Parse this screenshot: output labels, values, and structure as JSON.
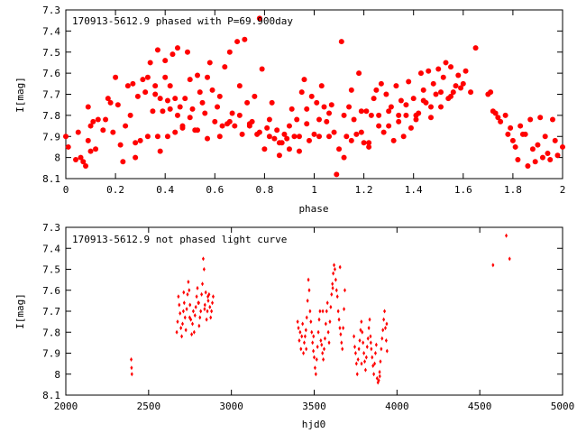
{
  "chart_data": [
    {
      "type": "scatter",
      "title": "170913-5612.9 phased with P=69.900day",
      "xlabel": "phase",
      "ylabel": "I[mag]",
      "xlim": [
        0,
        2
      ],
      "ylim": [
        8.1,
        7.3
      ],
      "y_inverted": true,
      "x_ticks": [
        "0",
        "0.2",
        "0.4",
        "0.6",
        "0.8",
        "1",
        "1.2",
        "1.4",
        "1.6",
        "1.8",
        "2"
      ],
      "y_ticks": [
        "7.3",
        "7.4",
        "7.5",
        "7.6",
        "7.7",
        "7.8",
        "7.9",
        "8",
        "8.1"
      ],
      "marker_color": "#ff0000",
      "marker": "filled-circle",
      "grid": false,
      "series": [
        {
          "x": [
            0.0,
            0.01,
            0.04,
            0.05,
            0.06,
            0.07,
            0.08,
            0.09,
            0.09,
            0.1,
            0.1,
            0.11,
            0.12,
            0.13,
            0.15,
            0.16,
            0.17,
            0.18,
            0.19,
            0.2,
            0.21,
            0.22,
            0.23,
            0.24,
            0.25,
            0.26,
            0.27,
            0.28,
            0.29,
            0.3,
            0.31,
            0.32,
            0.33,
            0.34,
            0.35,
            0.36,
            0.37,
            0.37,
            0.38,
            0.38,
            0.39,
            0.4,
            0.4,
            0.41,
            0.42,
            0.42,
            0.43,
            0.44,
            0.45,
            0.45,
            0.46,
            0.47,
            0.48,
            0.49,
            0.5,
            0.5,
            0.51,
            0.52,
            0.53,
            0.54,
            0.55,
            0.56,
            0.57,
            0.58,
            0.59,
            0.6,
            0.61,
            0.62,
            0.63,
            0.64,
            0.65,
            0.66,
            0.67,
            0.68,
            0.69,
            0.7,
            0.71,
            0.72,
            0.73,
            0.74,
            0.75,
            0.76,
            0.77,
            0.78,
            0.79,
            0.8,
            0.81,
            0.82,
            0.83,
            0.84,
            0.85,
            0.86,
            0.87,
            0.88,
            0.89,
            0.9,
            0.91,
            0.92,
            0.93,
            0.94,
            0.95,
            0.96,
            0.97,
            0.98,
            0.99,
            1.0,
            1.01,
            1.02,
            1.03,
            1.04,
            1.05,
            1.06,
            1.07,
            1.08,
            1.09,
            1.1,
            1.11,
            1.12,
            1.13,
            1.14,
            1.15,
            1.16,
            1.17,
            1.18,
            1.19,
            1.2,
            1.21,
            1.22,
            1.23,
            1.24,
            1.25,
            1.26,
            1.27,
            1.28,
            1.29,
            1.3,
            1.31,
            1.32,
            1.33,
            1.34,
            1.35,
            1.36,
            1.37,
            1.38,
            1.39,
            1.4,
            1.41,
            1.42,
            1.43,
            1.44,
            1.45,
            1.46,
            1.47,
            1.48,
            1.49,
            1.5,
            1.51,
            1.52,
            1.53,
            1.54,
            1.55,
            1.56,
            1.57,
            1.58,
            1.59,
            1.6,
            1.61,
            1.63,
            1.65,
            1.7,
            1.71,
            1.72,
            1.73,
            1.74,
            1.75,
            1.77,
            1.78,
            1.79,
            1.8,
            1.81,
            1.82,
            1.83,
            1.84,
            1.85,
            1.86,
            1.87,
            1.88,
            1.89,
            1.9,
            1.91,
            1.92,
            1.93,
            1.94,
            1.95,
            1.96,
            1.97,
            1.98,
            2.0,
            0.28,
            0.33,
            0.36,
            0.41,
            0.44,
            0.47,
            0.53,
            0.57,
            0.62,
            0.66,
            0.7,
            0.74,
            0.78,
            0.82,
            0.86,
            0.9,
            0.94,
            0.97,
            1.02,
            1.06,
            1.12,
            1.15,
            1.19,
            1.22,
            1.26,
            1.3,
            1.34,
            1.37,
            1.41,
            1.44,
            1.47,
            1.51,
            1.55
          ],
          "y": [
            7.9,
            7.95,
            8.01,
            7.88,
            8.0,
            8.02,
            8.04,
            7.92,
            7.76,
            7.97,
            7.85,
            7.83,
            7.96,
            7.82,
            7.87,
            7.82,
            7.72,
            7.74,
            7.88,
            7.62,
            7.75,
            7.94,
            8.02,
            7.85,
            7.66,
            7.8,
            7.65,
            8.0,
            7.71,
            7.92,
            7.63,
            7.69,
            7.62,
            7.55,
            7.78,
            7.66,
            7.49,
            7.9,
            7.72,
            7.97,
            7.78,
            7.54,
            7.62,
            7.9,
            7.66,
            7.77,
            7.51,
            7.72,
            7.48,
            7.8,
            7.76,
            7.85,
            7.72,
            7.5,
            7.63,
            7.81,
            7.77,
            7.87,
            7.61,
            7.69,
            7.74,
            7.79,
            7.62,
            7.55,
            7.68,
            7.83,
            7.76,
            7.71,
            7.85,
            7.57,
            7.84,
            7.5,
            7.79,
            7.85,
            7.45,
            7.66,
            7.89,
            7.44,
            7.74,
            7.84,
            7.83,
            7.71,
            7.89,
            7.34,
            7.58,
            7.96,
            7.86,
            7.82,
            7.74,
            7.91,
            7.87,
            7.99,
            7.93,
            7.89,
            7.91,
            7.96,
            7.77,
            7.9,
            7.82,
            7.9,
            7.69,
            7.63,
            7.77,
            7.92,
            7.71,
            7.89,
            7.74,
            7.82,
            7.66,
            7.76,
            7.83,
            7.9,
            7.75,
            7.88,
            8.08,
            7.96,
            7.45,
            7.8,
            7.9,
            7.76,
            7.68,
            7.82,
            7.89,
            7.6,
            7.78,
            7.93,
            7.78,
            7.95,
            7.8,
            7.72,
            7.68,
            7.8,
            7.65,
            7.88,
            7.7,
            7.85,
            7.76,
            7.92,
            7.66,
            7.8,
            7.73,
            7.9,
            7.8,
            7.64,
            7.86,
            7.72,
            7.82,
            7.79,
            7.6,
            7.68,
            7.74,
            7.59,
            7.81,
            7.65,
            7.7,
            7.58,
            7.76,
            7.62,
            7.55,
            7.72,
            7.57,
            7.69,
            7.66,
            7.61,
            7.67,
            7.65,
            7.59,
            7.69,
            7.48,
            7.7,
            7.69,
            7.78,
            7.79,
            7.81,
            7.83,
            7.8,
            7.89,
            7.86,
            7.92,
            7.95,
            8.01,
            7.85,
            7.89,
            7.89,
            8.04,
            7.82,
            7.96,
            8.02,
            7.94,
            7.81,
            8.0,
            7.9,
            7.98,
            8.01,
            7.82,
            7.92,
            7.99,
            7.95,
            7.93,
            7.9,
            7.7,
            7.73,
            7.88,
            7.86,
            7.87,
            7.91,
            7.9,
            7.83,
            7.8,
            7.85,
            7.88,
            7.9,
            7.93,
            7.85,
            7.97,
            7.84,
            7.9,
            7.79,
            8.0,
            7.92,
            7.88,
            7.93,
            7.85,
            7.78,
            7.83,
            7.75,
            7.8,
            7.73,
            7.76,
            7.69,
            7.71
          ]
        }
      ]
    },
    {
      "type": "scatter",
      "title": "170913-5612.9 not phased light curve",
      "xlabel": "hjd0",
      "ylabel": "I[mag]",
      "xlim": [
        2000,
        5000
      ],
      "ylim": [
        8.1,
        7.3
      ],
      "y_inverted": true,
      "x_ticks": [
        "2000",
        "2500",
        "3000",
        "3500",
        "4000",
        "4500",
        "5000"
      ],
      "y_ticks": [
        "7.3",
        "7.4",
        "7.5",
        "7.6",
        "7.7",
        "7.8",
        "7.9",
        "8",
        "8.1"
      ],
      "marker_color": "#ff0000",
      "marker": "filled-diamond",
      "grid": false,
      "series": [
        {
          "x": [
            2395,
            2397,
            2399,
            2670,
            2675,
            2680,
            2685,
            2690,
            2695,
            2700,
            2705,
            2710,
            2715,
            2720,
            2725,
            2730,
            2735,
            2740,
            2745,
            2750,
            2755,
            2760,
            2765,
            2770,
            2775,
            2780,
            2785,
            2790,
            2795,
            2800,
            2805,
            2810,
            2815,
            2820,
            2825,
            2830,
            2835,
            2840,
            2845,
            2850,
            2855,
            2860,
            2865,
            2870,
            2875,
            2880,
            2885,
            2890,
            3400,
            3405,
            3410,
            3415,
            3420,
            3425,
            3430,
            3435,
            3440,
            3445,
            3450,
            3455,
            3460,
            3465,
            3470,
            3475,
            3480,
            3485,
            3490,
            3495,
            3500,
            3505,
            3510,
            3515,
            3520,
            3525,
            3530,
            3535,
            3540,
            3545,
            3550,
            3555,
            3560,
            3565,
            3570,
            3575,
            3580,
            3585,
            3590,
            3595,
            3600,
            3605,
            3610,
            3615,
            3620,
            3625,
            3630,
            3635,
            3640,
            3645,
            3650,
            3655,
            3660,
            3665,
            3670,
            3675,
            3680,
            3685,
            3740,
            3745,
            3750,
            3755,
            3760,
            3765,
            3770,
            3775,
            3780,
            3785,
            3790,
            3795,
            3800,
            3805,
            3810,
            3815,
            3820,
            3825,
            3830,
            3835,
            3840,
            3845,
            3850,
            3855,
            3860,
            3865,
            3870,
            3875,
            3880,
            3885,
            3890,
            3895,
            3900,
            3905,
            3910,
            3915,
            3920,
            3925,
            3930,
            3935,
            3940,
            4580,
            4660,
            4680,
            2712,
            2748,
            2803,
            2838,
            2858,
            3452,
            3496,
            3552,
            3612,
            3656,
            3786,
            3842,
            3896,
            3938
          ],
          "y": [
            7.93,
            7.97,
            8.0,
            7.8,
            7.75,
            7.63,
            7.67,
            7.71,
            7.78,
            7.82,
            7.76,
            7.7,
            7.66,
            7.73,
            7.79,
            7.69,
            7.62,
            7.56,
            7.6,
            7.67,
            7.74,
            7.81,
            7.76,
            7.7,
            7.8,
            7.72,
            7.68,
            7.63,
            7.59,
            7.66,
            7.77,
            7.73,
            7.7,
            7.62,
            7.57,
            7.45,
            7.5,
            7.67,
            7.61,
            7.74,
            7.7,
            7.65,
            7.62,
            7.68,
            7.73,
            7.7,
            7.66,
            7.63,
            7.75,
            7.78,
            7.84,
            7.8,
            7.88,
            7.82,
            7.76,
            7.9,
            7.85,
            7.82,
            7.79,
            7.73,
            7.65,
            7.55,
            7.6,
            7.7,
            7.75,
            7.8,
            7.85,
            7.89,
            7.92,
            7.97,
            8.0,
            7.93,
            7.87,
            7.8,
            7.74,
            7.7,
            7.84,
            7.86,
            7.9,
            7.93,
            7.88,
            7.83,
            7.76,
            7.7,
            7.66,
            7.8,
            7.85,
            7.75,
            7.68,
            7.62,
            7.57,
            7.52,
            7.48,
            7.5,
            7.55,
            7.6,
            7.63,
            7.7,
            7.74,
            7.78,
            7.81,
            7.85,
            7.88,
            7.78,
            7.69,
            7.6,
            7.82,
            7.87,
            7.9,
            7.95,
            8.0,
            7.93,
            7.88,
            7.84,
            7.79,
            7.75,
            7.8,
            7.85,
            7.9,
            7.94,
            7.98,
            7.92,
            7.87,
            7.83,
            7.78,
            7.74,
            7.82,
            7.88,
            7.92,
            7.96,
            8.0,
            7.95,
            7.9,
            7.86,
            8.02,
            8.04,
            8.03,
            7.99,
            7.94,
            7.88,
            7.83,
            7.79,
            7.74,
            7.7,
            7.78,
            7.84,
            7.89,
            7.48,
            7.34,
            7.45,
            7.61,
            7.73,
            7.66,
            7.69,
            7.63,
            7.88,
            7.82,
            7.7,
            7.59,
            7.49,
            7.95,
            7.85,
            8.01,
            7.76
          ]
        }
      ]
    }
  ]
}
